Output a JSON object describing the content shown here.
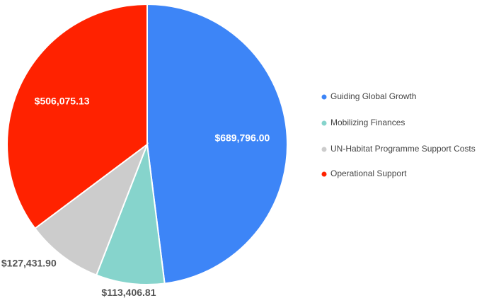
{
  "chart_data": {
    "type": "pie",
    "categories": [
      "Guiding Global Growth",
      "Mobilizing Finances",
      "UN-Habitat Programme Support Costs",
      "Operational Support"
    ],
    "values": [
      689796.0,
      113406.81,
      127431.9,
      506075.13
    ],
    "value_labels": [
      "$689,796.00",
      "$113,406.81",
      "$127,431.90",
      "$506,075.13"
    ],
    "colors": [
      "#3d85f7",
      "#86d4cc",
      "#cccccc",
      "#ff2200"
    ],
    "legend": "right"
  }
}
